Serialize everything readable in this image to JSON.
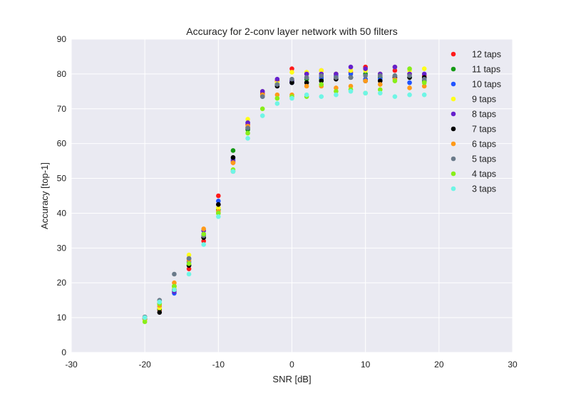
{
  "chart_data": {
    "type": "scatter",
    "title": "Accuracy for 2-conv layer network with 50 filters",
    "xlabel": "SNR [dB]",
    "ylabel": "Accuracy [top-1]",
    "xlim": [
      -30,
      30
    ],
    "ylim": [
      0,
      90
    ],
    "xticks": [
      -30,
      -20,
      -10,
      0,
      10,
      20,
      30
    ],
    "yticks": [
      0,
      10,
      20,
      30,
      40,
      50,
      60,
      70,
      80,
      90
    ],
    "grid": true,
    "legend_position": "top-right",
    "x": [
      -20,
      -18,
      -16,
      -14,
      -12,
      -10,
      -8,
      -6,
      -4,
      -2,
      0,
      2,
      4,
      6,
      8,
      10,
      12,
      14,
      16,
      18
    ],
    "series": [
      {
        "name": "12 taps",
        "color": "#ff1a1a",
        "values": [
          9.8,
          12.2,
          18.0,
          24.0,
          32.0,
          45.0,
          54.5,
          65.5,
          74.5,
          78.0,
          81.5,
          80.0,
          81.0,
          80.0,
          80.5,
          82.0,
          79.5,
          81.0,
          80.0,
          79.5
        ]
      },
      {
        "name": "11 taps",
        "color": "#159a15",
        "values": [
          9.5,
          12.5,
          19.0,
          25.0,
          33.0,
          41.0,
          58.0,
          64.0,
          74.0,
          77.0,
          78.0,
          78.5,
          78.5,
          79.0,
          79.0,
          80.0,
          79.0,
          79.5,
          79.0,
          78.0
        ]
      },
      {
        "name": "10 taps",
        "color": "#2255ff",
        "values": [
          9.6,
          13.0,
          17.0,
          26.0,
          34.0,
          43.5,
          55.5,
          66.0,
          73.5,
          77.0,
          77.5,
          79.0,
          79.0,
          79.5,
          80.0,
          78.5,
          78.5,
          79.0,
          77.5,
          78.5
        ]
      },
      {
        "name": "9 taps",
        "color": "#ffff1a",
        "values": [
          9.2,
          12.8,
          18.5,
          28.0,
          35.0,
          41.5,
          55.0,
          67.0,
          75.0,
          77.5,
          80.5,
          80.5,
          81.0,
          80.0,
          81.0,
          81.0,
          80.0,
          82.0,
          81.0,
          81.5
        ]
      },
      {
        "name": "8 taps",
        "color": "#6620cc",
        "values": [
          10.0,
          14.0,
          17.5,
          27.0,
          35.0,
          42.5,
          55.0,
          66.0,
          75.0,
          78.5,
          78.0,
          80.0,
          80.0,
          80.0,
          82.0,
          81.5,
          80.0,
          82.0,
          80.0,
          80.0
        ]
      },
      {
        "name": "7 taps",
        "color": "#000000",
        "values": [
          9.8,
          11.5,
          18.0,
          25.0,
          33.0,
          42.5,
          56.0,
          64.5,
          74.0,
          76.5,
          77.5,
          77.5,
          78.0,
          78.5,
          79.0,
          78.0,
          78.0,
          79.0,
          79.0,
          79.0
        ]
      },
      {
        "name": "6 taps",
        "color": "#ff9a1a",
        "values": [
          9.8,
          13.5,
          20.0,
          26.5,
          35.5,
          40.5,
          54.5,
          65.0,
          74.0,
          74.0,
          74.0,
          76.5,
          76.5,
          76.0,
          76.5,
          78.0,
          77.0,
          78.5,
          76.0,
          76.5
        ]
      },
      {
        "name": "5 taps",
        "color": "#6a7a8a",
        "values": [
          10.2,
          15.0,
          22.5,
          27.0,
          33.5,
          40.0,
          52.0,
          64.5,
          73.5,
          77.0,
          78.5,
          79.0,
          79.5,
          79.0,
          79.0,
          79.5,
          79.5,
          79.5,
          79.5,
          78.5
        ]
      },
      {
        "name": "4 taps",
        "color": "#88ee1a",
        "values": [
          8.8,
          14.0,
          19.0,
          25.5,
          34.0,
          40.0,
          52.5,
          63.0,
          70.0,
          73.0,
          73.5,
          73.5,
          77.0,
          75.0,
          75.5,
          74.5,
          75.5,
          78.0,
          81.5,
          77.5
        ]
      },
      {
        "name": "3 taps",
        "color": "#6ef5e5",
        "values": [
          10.0,
          14.5,
          18.0,
          22.5,
          31.0,
          39.0,
          52.0,
          61.5,
          68.0,
          71.5,
          73.0,
          74.0,
          73.5,
          74.0,
          75.0,
          74.5,
          74.5,
          73.5,
          74.0,
          74.0
        ]
      }
    ]
  }
}
